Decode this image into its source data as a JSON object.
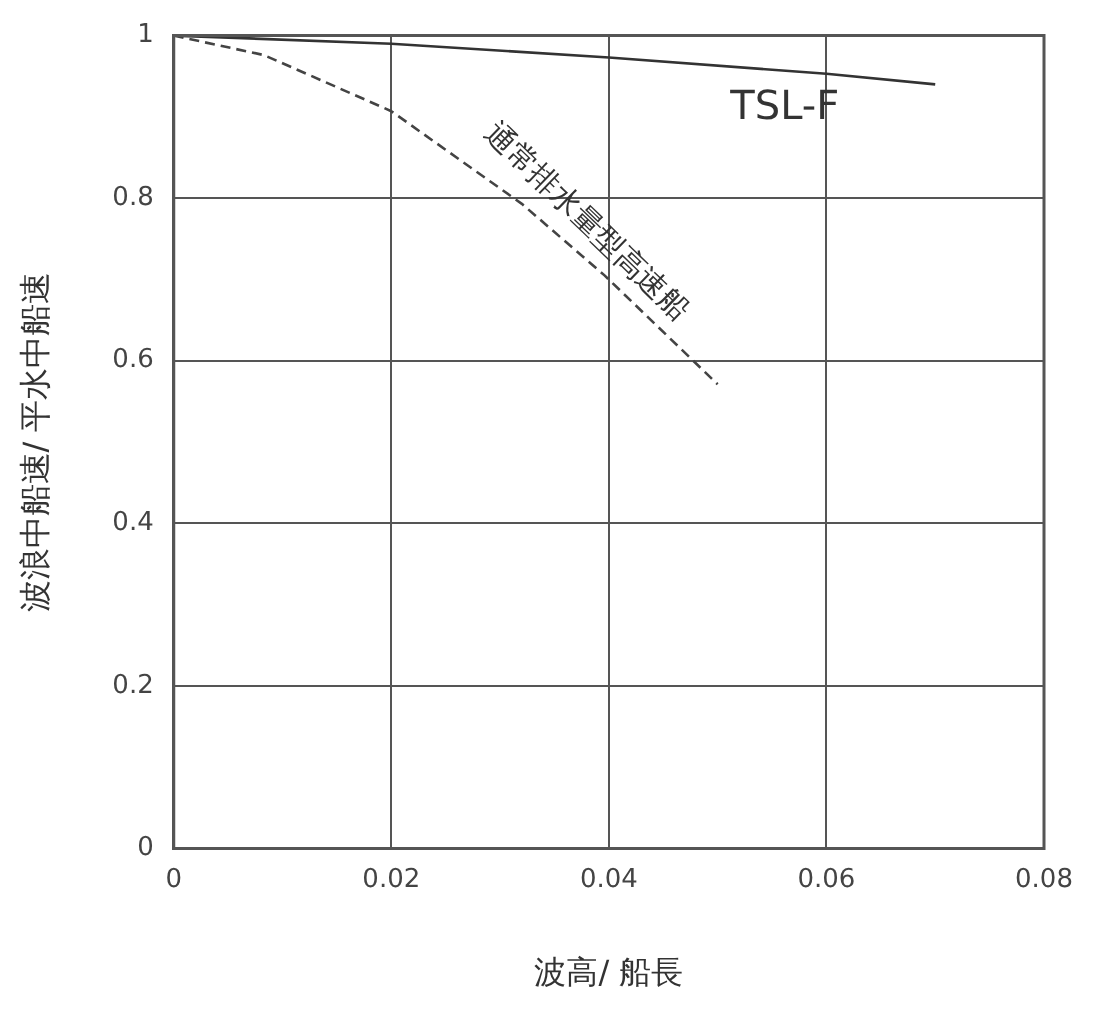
{
  "chart_data": {
    "type": "line",
    "xlabel": "波高/ 船長",
    "ylabel": "波浪中船速/ 平水中船速",
    "xlim": [
      0,
      0.08
    ],
    "xticks": [
      0,
      0.02,
      0.04,
      0.06,
      0.08
    ],
    "ylim": [
      0,
      1
    ],
    "yticks": [
      0,
      0.2,
      0.4,
      0.6,
      0.8,
      1
    ],
    "grid": true,
    "legend": false,
    "marker": "none",
    "series": [
      {
        "name": "TSL-F",
        "color": "#333333",
        "line_style": "solid",
        "x": [
          0,
          0.02,
          0.04,
          0.06,
          0.07
        ],
        "values": [
          1,
          0.99,
          0.973,
          0.953,
          0.94
        ]
      },
      {
        "name": "通常排水量型高速船",
        "color": "#444444",
        "line_style": "dashed",
        "x": [
          0,
          0.0083,
          0.02,
          0.032,
          0.0396,
          0.05
        ],
        "values": [
          1,
          0.976,
          0.907,
          0.793,
          0.705,
          0.571
        ]
      }
    ]
  }
}
